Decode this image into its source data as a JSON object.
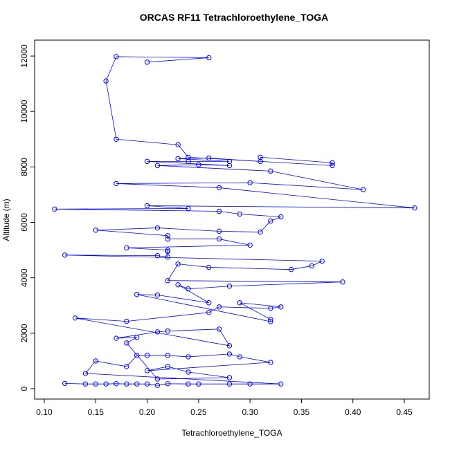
{
  "chart_data": {
    "type": "line",
    "title": "ORCAS RF11 Tetrachloroethylene_TOGA",
    "xlabel": "Tetrachloroethylene_TOGA",
    "ylabel": "Altitude (m)",
    "xlim": [
      0.0906,
      0.4742
    ],
    "ylim": [
      -374,
      12575
    ],
    "xticks": [
      {
        "value": 0.1,
        "label": "0.10"
      },
      0.15,
      {
        "value": 0.2,
        "label": "0.20"
      },
      0.25,
      {
        "value": 0.3,
        "label": "0.30"
      },
      0.35,
      {
        "value": 0.4,
        "label": "0.40"
      },
      0.45
    ],
    "yticks": [
      0,
      2000,
      4000,
      6000,
      8000,
      10000,
      12000
    ],
    "series": [
      {
        "color": "#0000ff",
        "x": [
          0.12,
          0.14,
          0.15,
          0.16,
          0.17,
          0.18,
          0.19,
          0.2,
          0.21,
          0.22,
          0.24,
          0.25,
          0.28,
          0.3,
          0.33,
          0.14,
          0.15,
          0.18,
          0.19,
          0.2,
          0.22,
          0.24,
          0.28,
          0.29,
          0.32,
          0.2,
          0.22,
          0.24,
          0.28,
          0.21,
          0.18,
          0.19,
          0.17,
          0.21,
          0.22,
          0.27,
          0.28,
          0.13,
          0.18,
          0.26,
          0.27,
          0.32,
          0.33,
          0.29,
          0.32,
          0.32,
          0.19,
          0.21,
          0.26,
          0.23,
          0.24,
          0.28,
          0.39,
          0.22,
          0.23,
          0.26,
          0.34,
          0.36,
          0.37,
          0.12,
          0.21,
          0.22,
          0.22,
          0.22,
          0.18,
          0.3,
          0.27,
          0.22,
          0.22,
          0.15,
          0.21,
          0.27,
          0.31,
          0.32,
          0.33,
          0.29,
          0.27,
          0.11,
          0.24,
          0.2,
          0.46,
          0.27,
          0.17,
          0.3,
          0.41,
          0.32,
          0.21,
          0.25,
          0.28,
          0.2,
          0.24,
          0.28,
          0.23,
          0.26,
          0.31,
          0.31,
          0.38,
          0.38,
          0.24,
          0.23,
          0.17,
          0.16,
          0.17,
          0.26,
          0.2
        ],
        "y": [
          190,
          170,
          170,
          170,
          180,
          170,
          170,
          170,
          120,
          180,
          170,
          170,
          170,
          170,
          170,
          550,
          1000,
          800,
          1200,
          1200,
          1200,
          1150,
          1250,
          1150,
          950,
          650,
          800,
          600,
          400,
          350,
          1650,
          1850,
          1820,
          2050,
          2080,
          2150,
          1550,
          2550,
          2430,
          2750,
          2950,
          2900,
          2950,
          3100,
          2500,
          2420,
          3400,
          3380,
          3100,
          3750,
          3600,
          3700,
          3850,
          3900,
          4500,
          4380,
          4300,
          4430,
          4600,
          4820,
          4800,
          4750,
          4950,
          5000,
          5080,
          5180,
          5400,
          5400,
          5520,
          5720,
          5800,
          5680,
          5650,
          6050,
          6200,
          6300,
          6400,
          6480,
          6500,
          6600,
          6520,
          7250,
          7400,
          7430,
          7180,
          7850,
          8050,
          8080,
          8050,
          8200,
          8200,
          8200,
          8300,
          8320,
          8200,
          8350,
          8150,
          8050,
          8350,
          8800,
          9000,
          11100,
          11980,
          11940,
          11780
        ]
      }
    ]
  }
}
